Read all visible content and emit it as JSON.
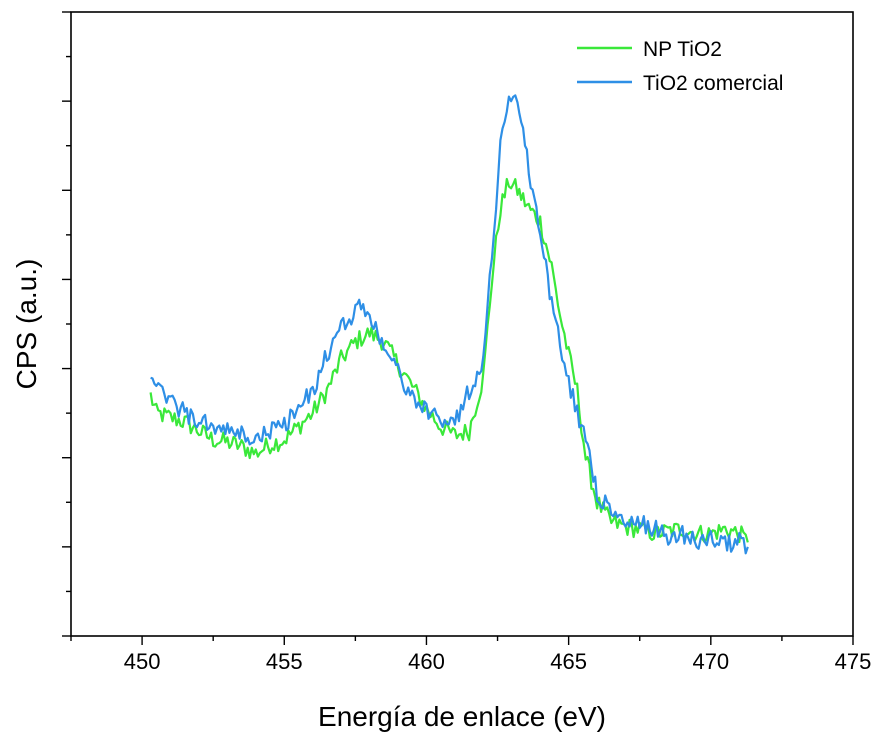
{
  "chart_data": {
    "type": "line",
    "title": "",
    "xlabel": "Energía de enlace (eV)",
    "ylabel": "CPS (a.u.)",
    "xlim": [
      447.5,
      475
    ],
    "ylim": [
      0,
      14
    ],
    "y_tick_labels_shown": false,
    "grid": false,
    "legend_position": "top-right",
    "x_ticks": [
      450,
      455,
      460,
      465,
      470,
      475
    ],
    "x_tick_labels": [
      "450",
      "455",
      "460",
      "465",
      "470",
      "475"
    ],
    "series": [
      {
        "name": "NP TiO2",
        "color": "#3ae83a",
        "points": [
          [
            450.3,
            5.4
          ],
          [
            450.5,
            5.0
          ],
          [
            451.0,
            4.9
          ],
          [
            451.5,
            4.8
          ],
          [
            452.0,
            4.6
          ],
          [
            452.5,
            4.4
          ],
          [
            453.0,
            4.35
          ],
          [
            453.5,
            4.25
          ],
          [
            454.0,
            4.1
          ],
          [
            454.5,
            4.3
          ],
          [
            455.0,
            4.4
          ],
          [
            455.5,
            4.7
          ],
          [
            456.0,
            5.0
          ],
          [
            456.5,
            5.5
          ],
          [
            457.0,
            6.2
          ],
          [
            457.5,
            6.6
          ],
          [
            458.0,
            6.8
          ],
          [
            458.5,
            6.6
          ],
          [
            459.0,
            6.1
          ],
          [
            459.5,
            5.6
          ],
          [
            460.0,
            5.1
          ],
          [
            460.5,
            4.7
          ],
          [
            461.0,
            4.5
          ],
          [
            461.5,
            4.6
          ],
          [
            462.0,
            5.8
          ],
          [
            462.3,
            8.0
          ],
          [
            462.6,
            9.6
          ],
          [
            462.9,
            10.2
          ],
          [
            463.2,
            10.0
          ],
          [
            463.6,
            9.6
          ],
          [
            464.0,
            9.3
          ],
          [
            464.4,
            8.3
          ],
          [
            464.7,
            7.2
          ],
          [
            465.0,
            6.3
          ],
          [
            465.3,
            5.5
          ],
          [
            465.6,
            4.0
          ],
          [
            466.0,
            3.0
          ],
          [
            466.5,
            2.55
          ],
          [
            467.0,
            2.45
          ],
          [
            467.5,
            2.4
          ],
          [
            468.0,
            2.3
          ],
          [
            468.5,
            2.35
          ],
          [
            469.0,
            2.4
          ],
          [
            469.5,
            2.3
          ],
          [
            470.0,
            2.3
          ],
          [
            470.5,
            2.4
          ],
          [
            471.0,
            2.3
          ],
          [
            471.3,
            2.1
          ]
        ]
      },
      {
        "name": "TiO2 comercial",
        "color": "#2e8fe6",
        "points": [
          [
            450.3,
            6.0
          ],
          [
            450.5,
            5.5
          ],
          [
            451.0,
            5.3
          ],
          [
            451.5,
            5.0
          ],
          [
            452.0,
            4.8
          ],
          [
            452.5,
            4.7
          ],
          [
            453.0,
            4.6
          ],
          [
            453.5,
            4.5
          ],
          [
            454.0,
            4.4
          ],
          [
            454.5,
            4.6
          ],
          [
            455.0,
            4.75
          ],
          [
            455.5,
            5.1
          ],
          [
            456.0,
            5.5
          ],
          [
            456.5,
            6.3
          ],
          [
            457.0,
            6.9
          ],
          [
            457.5,
            7.3
          ],
          [
            457.7,
            7.5
          ],
          [
            458.0,
            7.1
          ],
          [
            458.5,
            6.6
          ],
          [
            459.0,
            5.9
          ],
          [
            459.5,
            5.4
          ],
          [
            460.0,
            5.0
          ],
          [
            460.5,
            4.9
          ],
          [
            461.0,
            4.8
          ],
          [
            461.5,
            5.5
          ],
          [
            462.0,
            6.2
          ],
          [
            462.3,
            8.5
          ],
          [
            462.6,
            11.0
          ],
          [
            462.9,
            12.2
          ],
          [
            463.2,
            12.0
          ],
          [
            463.6,
            10.5
          ],
          [
            464.0,
            9.0
          ],
          [
            464.4,
            7.5
          ],
          [
            464.7,
            6.5
          ],
          [
            465.0,
            5.7
          ],
          [
            465.3,
            5.0
          ],
          [
            465.6,
            4.5
          ],
          [
            466.0,
            3.2
          ],
          [
            466.5,
            2.8
          ],
          [
            467.0,
            2.5
          ],
          [
            467.5,
            2.5
          ],
          [
            468.0,
            2.45
          ],
          [
            468.5,
            2.2
          ],
          [
            469.0,
            2.3
          ],
          [
            469.5,
            2.1
          ],
          [
            470.0,
            2.2
          ],
          [
            470.5,
            2.05
          ],
          [
            471.0,
            2.15
          ],
          [
            471.3,
            2.0
          ]
        ]
      }
    ]
  }
}
